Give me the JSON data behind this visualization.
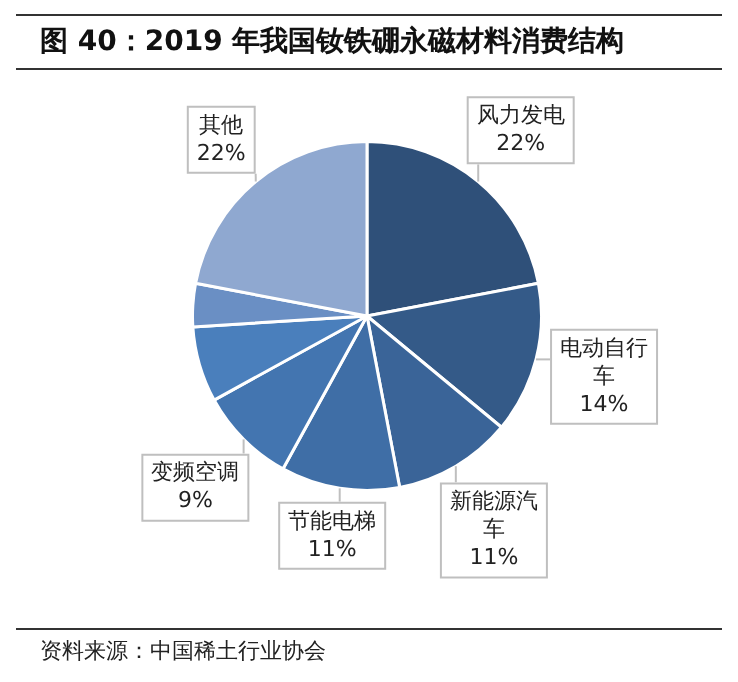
{
  "chart_data": {
    "type": "pie",
    "title": "图 40：2019 年我国钕铁硼永磁材料消费结构",
    "categories": [
      "风力发电",
      "电动自行车",
      "新能源汽车",
      "节能电梯",
      "变频空调",
      null,
      null,
      "其他"
    ],
    "values": [
      22,
      14,
      11,
      11,
      9,
      7,
      4,
      22
    ],
    "value_labels": [
      "22%",
      "14%",
      "11%",
      "11%",
      "9%",
      null,
      null,
      "22%"
    ],
    "colors": [
      "#2f5079",
      "#345a88",
      "#3a6498",
      "#3f6ea6",
      "#4375b0",
      "#4a7fbc",
      "#6a8fc4",
      "#8fa8d0"
    ],
    "legend": false,
    "annotations": [
      "资料来源：中国稀土行业协会"
    ]
  }
}
